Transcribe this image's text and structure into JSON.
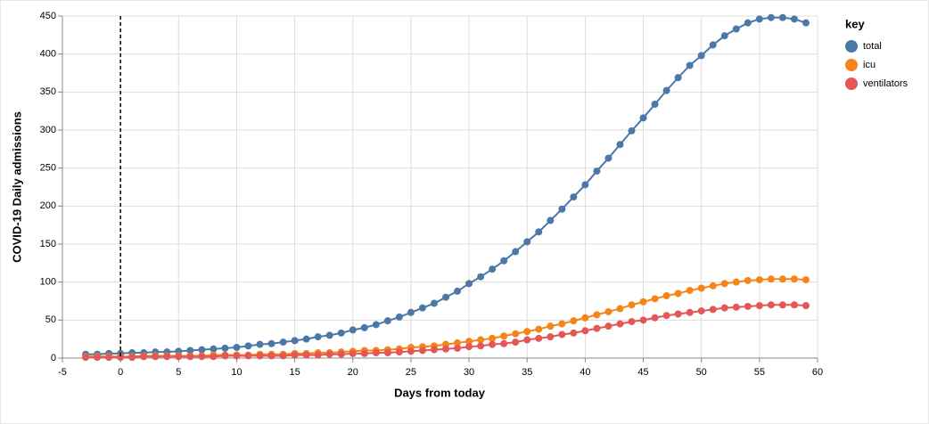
{
  "chart_data": {
    "type": "line",
    "x_label": "Days from today",
    "y_label": "COVID-19 Daily admissions",
    "legend_title": "key",
    "legend_position": "right",
    "rule_x": 0,
    "x": [
      -3,
      -2,
      -1,
      0,
      1,
      2,
      3,
      4,
      5,
      6,
      7,
      8,
      9,
      10,
      11,
      12,
      13,
      14,
      15,
      16,
      17,
      18,
      19,
      20,
      21,
      22,
      23,
      24,
      25,
      26,
      27,
      28,
      29,
      30,
      31,
      32,
      33,
      34,
      35,
      36,
      37,
      38,
      39,
      40,
      41,
      42,
      43,
      44,
      45,
      46,
      47,
      48,
      49,
      50,
      51,
      52,
      53,
      54,
      55,
      56,
      57,
      58,
      59
    ],
    "series": [
      {
        "name": "total",
        "color": "#4c78a8",
        "values": [
          5,
          5,
          6,
          6,
          7,
          7,
          8,
          8,
          9,
          10,
          11,
          12,
          13,
          14,
          16,
          18,
          19,
          21,
          23,
          25,
          28,
          30,
          33,
          37,
          40,
          44,
          49,
          54,
          60,
          66,
          72,
          80,
          88,
          98,
          107,
          117,
          128,
          140,
          153,
          166,
          181,
          196,
          212,
          228,
          246,
          263,
          281,
          299,
          316,
          334,
          352,
          369,
          385,
          398,
          412,
          424,
          433,
          441,
          446,
          448,
          448,
          446,
          441
        ]
      },
      {
        "name": "icu",
        "color": "#f58518",
        "values": [
          2,
          2,
          2,
          2,
          2,
          3,
          3,
          3,
          3,
          3,
          3,
          4,
          4,
          4,
          4,
          5,
          5,
          5,
          6,
          6,
          7,
          7,
          8,
          9,
          10,
          10,
          11,
          12,
          14,
          15,
          16,
          18,
          20,
          22,
          24,
          26,
          29,
          32,
          35,
          38,
          42,
          45,
          49,
          53,
          57,
          61,
          65,
          70,
          74,
          78,
          82,
          85,
          89,
          92,
          95,
          98,
          100,
          102,
          103,
          104,
          104,
          104,
          103
        ]
      },
      {
        "name": "ventilators",
        "color": "#e45756",
        "values": [
          1,
          1,
          1,
          1,
          1,
          2,
          2,
          2,
          2,
          2,
          2,
          2,
          3,
          3,
          3,
          3,
          3,
          3,
          4,
          4,
          4,
          5,
          5,
          6,
          6,
          7,
          7,
          8,
          9,
          10,
          11,
          12,
          13,
          15,
          16,
          18,
          19,
          21,
          24,
          26,
          28,
          31,
          33,
          36,
          39,
          42,
          45,
          48,
          50,
          53,
          56,
          58,
          60,
          62,
          64,
          66,
          67,
          68,
          69,
          70,
          70,
          70,
          69
        ]
      }
    ],
    "xlim": [
      -5,
      60
    ],
    "xticks": [
      -5,
      0,
      5,
      10,
      15,
      20,
      25,
      30,
      35,
      40,
      45,
      50,
      55,
      60
    ],
    "ylim": [
      0,
      450
    ],
    "yticks": [
      0,
      50,
      100,
      150,
      200,
      250,
      300,
      350,
      400,
      450
    ],
    "grid": true
  }
}
